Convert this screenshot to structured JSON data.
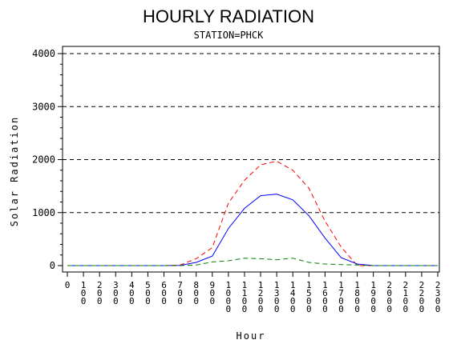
{
  "chart_data": {
    "type": "line",
    "title": "HOURLY RADIATION",
    "subtitle": "STATION=PHCK",
    "xlabel": "Hour",
    "ylabel": "Solar Radiation",
    "xlim": [
      0,
      2300
    ],
    "ylim": [
      0,
      4000
    ],
    "x_ticks": [
      0,
      100,
      200,
      300,
      400,
      500,
      600,
      700,
      800,
      900,
      1000,
      1100,
      1200,
      1300,
      1400,
      1500,
      1600,
      1700,
      1800,
      1900,
      2000,
      2100,
      2200,
      2300
    ],
    "x_tick_labels": [
      "0",
      "100",
      "200",
      "300",
      "400",
      "500",
      "600",
      "700",
      "800",
      "900",
      "1000",
      "1100",
      "1200",
      "1300",
      "1400",
      "1500",
      "1600",
      "1700",
      "1800",
      "1900",
      "2000",
      "2100",
      "2200",
      "2300"
    ],
    "y_ticks": [
      0,
      1000,
      2000,
      3000,
      4000
    ],
    "y_tick_labels": [
      "0",
      "1000",
      "2000",
      "3000",
      "4000"
    ],
    "gridlines_y": [
      1000,
      2000,
      3000,
      4000
    ],
    "series": [
      {
        "color": "#ff0000",
        "dash": "dashed",
        "x": [
          0,
          100,
          200,
          300,
          400,
          500,
          600,
          700,
          800,
          900,
          1000,
          1100,
          1200,
          1300,
          1400,
          1500,
          1600,
          1700,
          1800,
          1900,
          2000,
          2100,
          2200,
          2300
        ],
        "values": [
          0,
          0,
          0,
          0,
          0,
          0,
          0,
          10,
          130,
          340,
          1180,
          1610,
          1900,
          1970,
          1800,
          1460,
          840,
          350,
          0,
          0,
          0,
          0,
          0,
          0
        ]
      },
      {
        "color": "#0000ff",
        "dash": "solid",
        "x": [
          0,
          100,
          200,
          300,
          400,
          500,
          600,
          700,
          800,
          900,
          1000,
          1100,
          1200,
          1300,
          1400,
          1500,
          1600,
          1700,
          1800,
          1900,
          2000,
          2100,
          2200,
          2300
        ],
        "values": [
          0,
          0,
          0,
          0,
          0,
          0,
          0,
          5,
          60,
          180,
          700,
          1080,
          1320,
          1350,
          1240,
          940,
          520,
          150,
          30,
          0,
          0,
          0,
          0,
          0
        ]
      },
      {
        "color": "#008000",
        "dash": "dashed",
        "x": [
          0,
          100,
          200,
          300,
          400,
          500,
          600,
          700,
          800,
          900,
          1000,
          1100,
          1200,
          1300,
          1400,
          1500,
          1600,
          1700,
          1800,
          1900,
          2000,
          2100,
          2200,
          2300
        ],
        "values": [
          0,
          0,
          0,
          0,
          0,
          0,
          0,
          0,
          10,
          70,
          90,
          140,
          130,
          110,
          140,
          60,
          30,
          20,
          10,
          0,
          0,
          0,
          0,
          0
        ]
      }
    ]
  }
}
